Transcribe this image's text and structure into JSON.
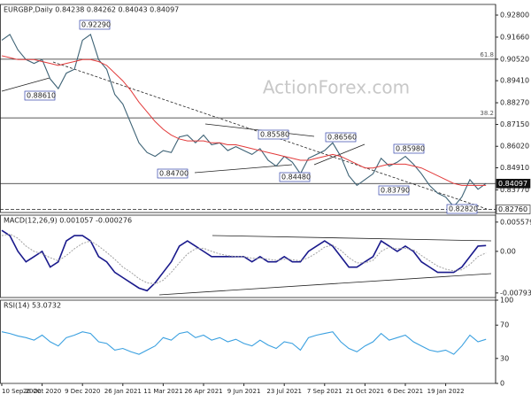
{
  "chart_data": [
    {
      "type": "line",
      "title": "EURGBP,Daily 0.84238 0.84262 0.84043 0.84097",
      "watermark": "ActionForex.com",
      "categories": [
        "10 Sep 2020",
        null,
        null,
        null,
        null,
        "26 Oct 2020",
        null,
        null,
        null,
        null,
        "9 Dec 2020",
        null,
        null,
        null,
        null,
        "26 Jan 2021",
        null,
        null,
        null,
        null,
        "11 Mar 2021",
        null,
        null,
        null,
        null,
        "26 Apr 2021",
        null,
        null,
        null,
        null,
        "9 Jun 2021",
        null,
        null,
        null,
        null,
        "23 Jul 2021",
        null,
        null,
        null,
        null,
        "7 Sep 2021",
        null,
        null,
        null,
        null,
        "21 Oct 2021",
        null,
        null,
        null,
        null,
        "6 Dec 2021",
        null,
        null,
        null,
        null,
        "19 Jan 2022",
        null,
        null,
        null,
        null,
        null
      ],
      "series": [
        {
          "color": "#3d6275",
          "values": [
            0.915,
            0.918,
            0.91,
            0.905,
            0.903,
            0.905,
            0.895,
            0.89,
            0.898,
            0.9,
            0.915,
            0.918,
            0.905,
            0.9,
            0.887,
            0.882,
            0.872,
            0.862,
            0.857,
            0.855,
            0.858,
            0.857,
            0.865,
            0.866,
            0.862,
            0.866,
            0.861,
            0.862,
            0.858,
            0.86,
            0.858,
            0.856,
            0.859,
            0.853,
            0.85,
            0.855,
            0.852,
            0.846,
            0.854,
            0.856,
            0.858,
            0.862,
            0.855,
            0.845,
            0.84,
            0.843,
            0.846,
            0.854,
            0.85,
            0.852,
            0.855,
            0.851,
            0.846,
            0.84,
            0.836,
            0.834,
            0.829,
            0.834,
            0.843,
            0.838,
            0.841
          ]
        },
        {
          "color": "#e23a3a",
          "values": [
            0.907,
            0.906,
            0.905,
            0.905,
            0.905,
            0.904,
            0.903,
            0.902,
            0.903,
            0.904,
            0.905,
            0.905,
            0.904,
            0.902,
            0.898,
            0.894,
            0.889,
            0.883,
            0.878,
            0.873,
            0.869,
            0.866,
            0.864,
            0.863,
            0.863,
            0.863,
            0.862,
            0.862,
            0.861,
            0.861,
            0.86,
            0.859,
            0.858,
            0.857,
            0.856,
            0.855,
            0.854,
            0.853,
            0.853,
            0.854,
            0.855,
            0.856,
            0.855,
            0.853,
            0.851,
            0.849,
            0.849,
            0.85,
            0.851,
            0.851,
            0.851,
            0.85,
            0.849,
            0.847,
            0.845,
            0.843,
            0.841,
            0.84,
            0.84,
            0.84,
            0.84
          ]
        }
      ],
      "ylim": [
        0.826,
        0.9335
      ],
      "yticks": [
        {
          "value": 0.928,
          "label": "0.92800"
        },
        {
          "value": 0.9166,
          "label": "0.91660"
        },
        {
          "value": 0.9052,
          "label": "0.90520"
        },
        {
          "value": 0.8941,
          "label": "0.89410"
        },
        {
          "value": 0.8827,
          "label": "0.88270"
        },
        {
          "value": 0.8715,
          "label": "0.87150"
        },
        {
          "value": 0.8602,
          "label": "0.86020"
        },
        {
          "value": 0.8491,
          "label": "0.84910"
        },
        {
          "value": 0.8377,
          "label": "0.83770"
        }
      ],
      "levels": [
        {
          "value": 0.9052,
          "label": "61.8"
        },
        {
          "value": 0.8749,
          "label": "38.2"
        }
      ],
      "price_labels": [
        {
          "value": 0.84097,
          "label": "0.84097",
          "style": "dark"
        },
        {
          "value": 0.8276,
          "label": "0.82760",
          "style": "light"
        }
      ],
      "annotations": [
        "0.92290",
        "0.88610",
        "0.84700",
        "0.85580",
        "0.84480",
        "0.86560",
        "0.83790",
        "0.85980",
        "0.82820"
      ]
    },
    {
      "type": "line",
      "title": "MACD(12,26,9) 0.001057 -0.000276",
      "series": [
        {
          "color": "#1a1a8c",
          "values": [
            0.004,
            0.003,
            0.0,
            -0.002,
            -0.001,
            0.0,
            -0.003,
            -0.002,
            0.002,
            0.003,
            0.003,
            0.002,
            -0.001,
            -0.002,
            -0.004,
            -0.005,
            -0.006,
            -0.007,
            -0.0075,
            -0.006,
            -0.004,
            -0.002,
            0.001,
            0.002,
            0.001,
            0.0,
            -0.001,
            -0.001,
            -0.001,
            -0.001,
            -0.001,
            -0.002,
            -0.001,
            -0.002,
            -0.002,
            -0.001,
            -0.002,
            -0.002,
            0.0,
            0.001,
            0.002,
            0.001,
            -0.001,
            -0.003,
            -0.003,
            -0.002,
            -0.001,
            0.002,
            0.001,
            0.0,
            0.001,
            0.0,
            -0.002,
            -0.003,
            -0.004,
            -0.004,
            -0.004,
            -0.003,
            -0.001,
            0.001,
            0.0011
          ]
        },
        {
          "color": "#a0a0a0",
          "values": [
            0.003,
            0.0033,
            0.0025,
            0.001,
            0.0,
            -0.0005,
            -0.0012,
            -0.0018,
            -0.0008,
            0.0005,
            0.0015,
            0.002,
            0.001,
            -0.0002,
            -0.0015,
            -0.003,
            -0.004,
            -0.0052,
            -0.006,
            -0.0062,
            -0.0055,
            -0.004,
            -0.0022,
            -0.0005,
            0.0005,
            0.0006,
            0.0,
            -0.0005,
            -0.0008,
            -0.001,
            -0.001,
            -0.0013,
            -0.0013,
            -0.0015,
            -0.0017,
            -0.0015,
            -0.0016,
            -0.0018,
            -0.0012,
            -0.0003,
            0.0008,
            0.0012,
            0.0002,
            -0.0012,
            -0.0022,
            -0.0022,
            -0.0017,
            0.0,
            0.0008,
            0.0005,
            0.0006,
            0.0003,
            -0.0008,
            -0.0018,
            -0.0028,
            -0.0034,
            -0.0037,
            -0.0035,
            -0.0025,
            -0.001,
            -0.0003
          ]
        }
      ],
      "ylim": [
        -0.0088,
        0.0069
      ],
      "yticks": [
        0.005579,
        {
          "value": 0,
          "label": "0.00"
        },
        -0.007931
      ]
    },
    {
      "type": "line",
      "title": "RSI(14) 53.0732",
      "series": [
        {
          "color": "#3aa0e0",
          "values": [
            62,
            60,
            57,
            55,
            52,
            58,
            50,
            45,
            55,
            58,
            62,
            60,
            50,
            48,
            40,
            42,
            38,
            35,
            40,
            45,
            55,
            52,
            60,
            62,
            55,
            58,
            52,
            55,
            50,
            53,
            48,
            45,
            52,
            46,
            42,
            50,
            48,
            40,
            55,
            58,
            60,
            62,
            50,
            42,
            38,
            45,
            50,
            60,
            52,
            55,
            58,
            50,
            45,
            40,
            38,
            40,
            35,
            45,
            58,
            50,
            53
          ]
        }
      ],
      "ylim": [
        0,
        100
      ],
      "yticks": [
        100,
        70,
        30,
        0
      ]
    }
  ]
}
